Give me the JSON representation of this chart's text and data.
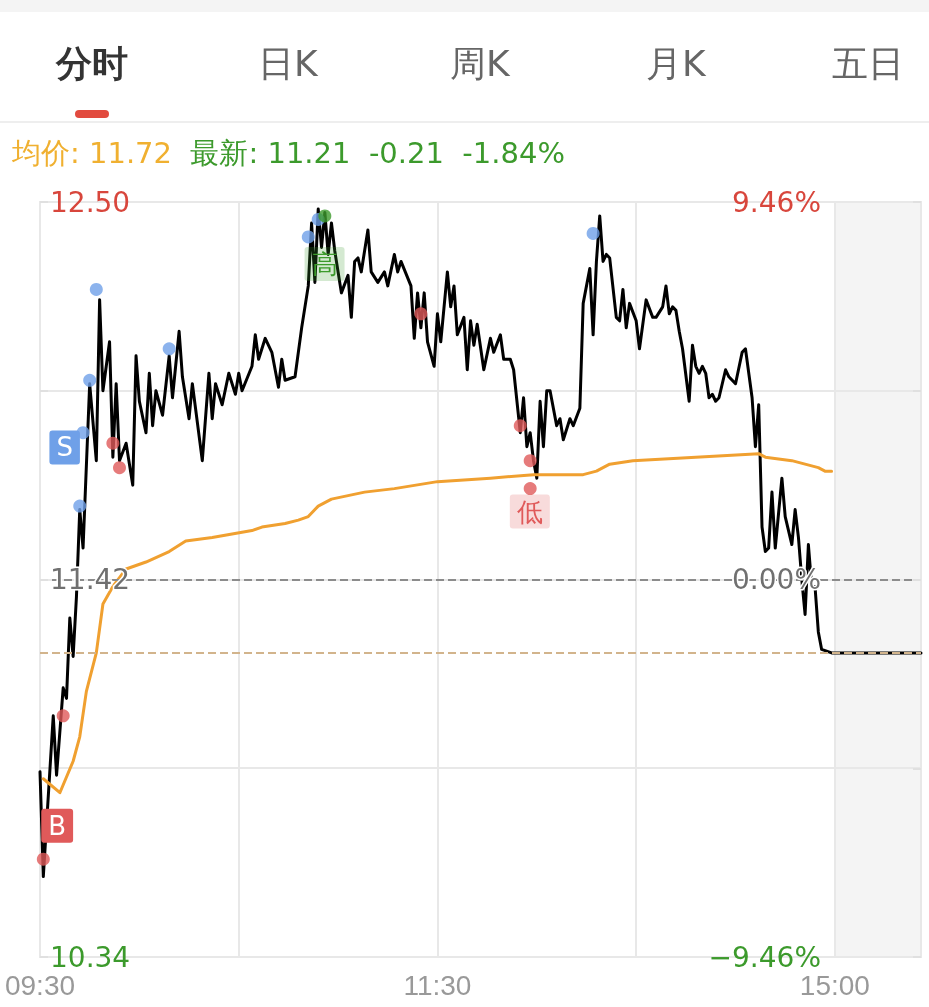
{
  "chart_data": {
    "type": "line",
    "title": "均价: 11.72",
    "subtitle": "最新: 11.21  -0.21  -1.84%",
    "annotations": [
      "分时",
      "日K",
      "周K",
      "月K",
      "五日",
      "S",
      "B",
      "高",
      "低"
    ],
    "categories": [
      "09:30",
      null,
      null,
      null,
      null,
      null,
      null,
      null,
      null,
      null,
      null,
      null,
      null,
      null,
      null,
      null,
      null,
      null,
      null,
      null,
      null,
      null,
      null,
      null,
      null,
      null,
      null,
      null,
      null,
      null,
      null,
      null,
      null,
      null,
      null,
      null,
      null,
      null,
      null,
      null,
      null,
      null,
      null,
      null,
      null,
      null,
      null,
      null,
      null,
      null,
      null,
      null,
      null,
      null,
      null,
      null,
      null,
      null,
      null,
      null,
      null,
      null,
      null,
      null,
      null,
      null,
      null,
      null,
      null,
      null,
      null,
      null,
      null,
      null,
      null,
      null,
      null,
      null,
      null,
      null,
      null,
      null,
      null,
      null,
      null,
      null,
      null,
      null,
      null,
      null,
      null,
      null,
      null,
      null,
      null,
      null,
      null,
      null,
      null,
      null,
      null,
      null,
      null,
      null,
      null,
      null,
      null,
      null,
      null,
      null,
      null,
      null,
      null,
      null,
      null,
      null,
      null,
      null,
      null,
      null,
      "11:30",
      null,
      null,
      null,
      null,
      null,
      null,
      null,
      null,
      null,
      null,
      null,
      null,
      null,
      null,
      null,
      null,
      null,
      null,
      null,
      null,
      null,
      null,
      null,
      null,
      null,
      null,
      null,
      null,
      null,
      null,
      null,
      null,
      null,
      null,
      null,
      null,
      null,
      null,
      null,
      null,
      null,
      null,
      null,
      null,
      null,
      null,
      null,
      null,
      null,
      null,
      null,
      null,
      null,
      null,
      null,
      null,
      null,
      null,
      null,
      null,
      null,
      null,
      null,
      null,
      null,
      null,
      null,
      null,
      null,
      null,
      null,
      null,
      null,
      null,
      null,
      null,
      null,
      null,
      null,
      null,
      null,
      null,
      null,
      null,
      null,
      null,
      null,
      null,
      null,
      null,
      null,
      null,
      null,
      null,
      null,
      null,
      null,
      null,
      null,
      null,
      null,
      null,
      null,
      null,
      null,
      null,
      null,
      null,
      null,
      null,
      null,
      null,
      null,
      null,
      null,
      null,
      null,
      null,
      null,
      "15:00",
      null,
      null,
      null,
      null,
      null,
      null,
      null,
      null,
      null,
      null,
      null,
      null,
      null,
      null,
      null,
      null,
      null,
      null,
      null,
      null,
      null,
      null,
      null,
      null,
      null,
      null
    ],
    "ylim": [
      10.34,
      12.5
    ],
    "yticks": [
      {
        "value": 10.34,
        "label": "10.34"
      },
      {
        "value": 10.88,
        "label": null
      },
      {
        "value": 11.42,
        "label": "11.42"
      },
      {
        "value": 11.96,
        "label": null
      },
      {
        "value": 12.5,
        "label": "12.50"
      }
    ],
    "y2lim": [
      -9.46,
      9.46
    ],
    "y2ticks": [
      {
        "value": -9.46,
        "label": "−9.46%"
      },
      {
        "value": -4.73,
        "label": null
      },
      {
        "value": 0,
        "label": "0.00%"
      },
      {
        "value": 4.73,
        "label": null
      },
      {
        "value": 9.46,
        "label": "9.46%"
      }
    ],
    "grid": true,
    "line_style": "solid",
    "ref_lines": [
      {
        "axis": "y",
        "value": 11.42,
        "color": "#8c8c8c",
        "line_style": "dashed"
      },
      {
        "axis": "y",
        "value": 11.21,
        "color": "#d2b48c",
        "line_style": "dashed"
      }
    ],
    "series": [
      {
        "color": "#000000",
        "marker": "none",
        "values": [
          10.87,
          10.57,
          null,
          null,
          11.03,
          10.86,
          null,
          11.11,
          11.08,
          11.31,
          11.2,
          11.37,
          11.62,
          11.51,
          null,
          11.98,
          null,
          11.76,
          12.22,
          11.96,
          null,
          12.1,
          11.77,
          11.98,
          11.76,
          null,
          11.81,
          null,
          11.69,
          12.06,
          11.93,
          null,
          11.84,
          12.01,
          11.86,
          11.96,
          null,
          11.89,
          null,
          12.06,
          11.94,
          null,
          12.13,
          12.0,
          null,
          11.88,
          11.98,
          null,
          null,
          11.76,
          null,
          12.01,
          11.88,
          11.98,
          null,
          11.92,
          null,
          12.01,
          null,
          11.95,
          12.01,
          11.96,
          null,
          null,
          12.03,
          12.12,
          12.05,
          null,
          12.11,
          null,
          12.07,
          null,
          11.97,
          12.05,
          11.99,
          null,
          null,
          12.0,
          null,
          12.14,
          null,
          12.26,
          12.44,
          12.27,
          12.48,
          12.37,
          12.47,
          12.35,
          12.44,
          12.36,
          null,
          12.24,
          null,
          12.29,
          12.17,
          12.33,
          12.34,
          12.3,
          null,
          12.42,
          12.3,
          null,
          12.27,
          null,
          12.3,
          12.26,
          null,
          12.35,
          12.3,
          12.33,
          null,
          null,
          12.26,
          12.11,
          12.24,
          12.14,
          12.24,
          12.1,
          null,
          12.03,
          12.18,
          12.1,
          null,
          12.3,
          12.2,
          12.26,
          12.12,
          null,
          12.17,
          12.02,
          12.16,
          12.09,
          12.15,
          null,
          12.02,
          null,
          12.11,
          12.07,
          null,
          12.12,
          12.05,
          null,
          12.05,
          12.02,
          null,
          11.84,
          11.94,
          11.8,
          11.84,
          11.76,
          11.71,
          11.93,
          11.8,
          11.96,
          11.96,
          null,
          11.86,
          11.88,
          11.82,
          null,
          11.88,
          11.86,
          null,
          11.91,
          12.21,
          null,
          12.31,
          12.12,
          12.33,
          12.46,
          12.33,
          12.35,
          12.34,
          null,
          12.17,
          12.16,
          12.25,
          12.14,
          12.21,
          null,
          12.16,
          12.08,
          null,
          12.22,
          null,
          12.17,
          12.17,
          null,
          12.2,
          12.26,
          12.18,
          12.2,
          12.19,
          12.13,
          12.08,
          null,
          11.93,
          12.09,
          12.03,
          12.01,
          12.03,
          12.01,
          11.94,
          11.95,
          11.93,
          11.94,
          null,
          12.02,
          12.0,
          null,
          11.98,
          null,
          12.07,
          12.08,
          12.01,
          11.94,
          11.8,
          11.92,
          11.57,
          11.5,
          11.51,
          11.67,
          11.51,
          null,
          11.71,
          11.6,
          null,
          11.52,
          11.62,
          11.54,
          11.42,
          11.32,
          11.52,
          11.4,
          11.4,
          11.27,
          11.22,
          null,
          null,
          11.21,
          11.21,
          11.21,
          11.21,
          11.21,
          11.21,
          11.21,
          11.21,
          11.21,
          11.21,
          11.21,
          11.21,
          11.21,
          11.21,
          11.21,
          11.21,
          11.21,
          11.21,
          11.21,
          11.21,
          11.21,
          11.21,
          11.21,
          11.21,
          11.21,
          11.21,
          11.21,
          11.21
        ]
      },
      {
        "color": "#f0a030",
        "marker": "none",
        "values": [
          null,
          10.85,
          null,
          null,
          null,
          null,
          10.81,
          null,
          null,
          null,
          10.9,
          null,
          10.97,
          null,
          11.1,
          null,
          null,
          11.21,
          null,
          11.35,
          null,
          null,
          11.4,
          null,
          null,
          null,
          11.45,
          null,
          null,
          null,
          null,
          null,
          11.47,
          null,
          null,
          null,
          null,
          null,
          null,
          11.5,
          null,
          null,
          null,
          null,
          11.53,
          null,
          null,
          null,
          null,
          null,
          null,
          null,
          11.54,
          null,
          null,
          null,
          null,
          null,
          null,
          null,
          null,
          null,
          null,
          null,
          11.56,
          null,
          null,
          11.57,
          null,
          null,
          null,
          null,
          null,
          null,
          11.58,
          null,
          null,
          null,
          11.59,
          null,
          null,
          11.6,
          null,
          null,
          11.63,
          null,
          null,
          null,
          11.65,
          null,
          null,
          null,
          null,
          null,
          null,
          null,
          null,
          null,
          11.67,
          null,
          null,
          null,
          null,
          null,
          null,
          null,
          null,
          11.68,
          null,
          null,
          null,
          null,
          null,
          null,
          null,
          null,
          null,
          null,
          null,
          null,
          11.7,
          null,
          null,
          null,
          null,
          null,
          null,
          null,
          null,
          null,
          null,
          null,
          null,
          null,
          null,
          null,
          11.71,
          null,
          null,
          null,
          null,
          null,
          null,
          null,
          null,
          null,
          null,
          null,
          null,
          11.72,
          null,
          null,
          null,
          null,
          null,
          null,
          null,
          null,
          null,
          null,
          null,
          null,
          null,
          null,
          11.72,
          null,
          null,
          null,
          11.73,
          null,
          null,
          null,
          11.75,
          null,
          null,
          null,
          null,
          null,
          null,
          11.76,
          null,
          null,
          null,
          null,
          null,
          null,
          null,
          null,
          null,
          null,
          null,
          null,
          null,
          null,
          null,
          null,
          null,
          null,
          11.77,
          null,
          null,
          null,
          null,
          null,
          null,
          null,
          null,
          null,
          null,
          null,
          null,
          null,
          null,
          null,
          null,
          null,
          null,
          11.78,
          null,
          11.77,
          null,
          null,
          null,
          null,
          null,
          null,
          null,
          11.76,
          null,
          null,
          null,
          null,
          null,
          null,
          null,
          11.74,
          null,
          11.73,
          null,
          11.73,
          null,
          null,
          null,
          null,
          null,
          null,
          null,
          null,
          null,
          null,
          null,
          null,
          null,
          null,
          null,
          null,
          null,
          null,
          null,
          null,
          null,
          null,
          null,
          null,
          null,
          null,
          null
        ]
      },
      {
        "type": "scatter",
        "color": "#6fa0e8",
        "marker": "circle",
        "values": [
          null,
          null,
          null,
          null,
          null,
          null,
          null,
          null,
          null,
          null,
          null,
          null,
          11.63,
          11.84,
          null,
          11.99,
          null,
          12.25,
          null,
          null,
          null,
          null,
          null,
          null,
          null,
          null,
          null,
          null,
          null,
          null,
          null,
          null,
          null,
          null,
          null,
          null,
          null,
          null,
          null,
          12.08,
          null,
          null,
          null,
          null,
          null,
          null,
          null,
          null,
          null,
          null,
          null,
          null,
          null,
          null,
          null,
          null,
          null,
          null,
          null,
          null,
          null,
          null,
          null,
          null,
          null,
          null,
          null,
          null,
          null,
          null,
          null,
          null,
          null,
          null,
          null,
          null,
          null,
          null,
          null,
          null,
          null,
          12.4,
          null,
          null,
          12.45,
          null,
          null,
          null,
          null,
          null,
          null,
          null,
          null,
          null,
          null,
          null,
          null,
          null,
          null,
          null,
          null,
          null,
          null,
          null,
          null,
          null,
          null,
          null,
          null,
          null,
          null,
          null,
          null,
          null,
          null,
          null,
          null,
          null,
          null,
          null,
          null,
          null,
          null,
          null,
          null,
          null,
          null,
          null,
          null,
          null,
          null,
          null,
          null,
          null,
          null,
          null,
          null,
          null,
          null,
          null,
          null,
          null,
          null,
          null,
          null,
          null,
          null,
          null,
          null,
          null,
          null,
          null,
          null,
          null,
          null,
          null,
          null,
          null,
          null,
          null,
          null,
          null,
          null,
          null,
          null,
          null,
          null,
          12.41,
          null,
          null,
          null,
          null,
          null,
          null,
          null,
          null,
          null,
          null,
          null,
          null,
          null,
          null,
          null,
          null,
          null,
          null,
          null,
          null,
          null,
          null,
          null,
          null,
          null,
          null,
          null,
          null,
          null,
          null,
          null,
          null,
          null,
          null,
          null,
          null,
          null,
          null,
          null,
          null,
          null,
          null,
          null,
          null,
          null,
          null,
          null,
          null,
          null,
          null,
          null,
          null,
          null,
          null,
          null,
          null,
          null,
          null,
          null,
          null,
          null,
          null,
          null,
          null,
          null,
          null,
          null,
          null,
          null,
          null,
          null,
          null,
          null,
          null,
          null,
          null,
          null,
          null,
          null,
          null,
          null,
          null,
          null,
          null,
          null,
          null,
          null,
          null,
          null,
          null,
          null,
          null,
          null,
          null,
          null,
          null,
          null,
          null,
          null
        ]
      },
      {
        "type": "scatter",
        "color": "#e05a5a",
        "marker": "circle",
        "values": [
          null,
          10.62,
          null,
          null,
          null,
          null,
          null,
          11.03,
          null,
          null,
          null,
          null,
          null,
          null,
          null,
          null,
          null,
          null,
          null,
          null,
          null,
          null,
          11.81,
          null,
          11.74,
          null,
          null,
          null,
          null,
          null,
          null,
          null,
          null,
          null,
          null,
          null,
          null,
          null,
          null,
          null,
          null,
          null,
          null,
          null,
          null,
          null,
          null,
          null,
          null,
          null,
          null,
          null,
          null,
          null,
          null,
          null,
          null,
          null,
          null,
          null,
          null,
          null,
          null,
          null,
          null,
          null,
          null,
          null,
          null,
          null,
          null,
          null,
          null,
          null,
          null,
          null,
          null,
          null,
          null,
          null,
          null,
          null,
          null,
          null,
          null,
          null,
          null,
          null,
          null,
          null,
          null,
          null,
          null,
          null,
          null,
          null,
          null,
          null,
          null,
          null,
          null,
          null,
          null,
          null,
          null,
          null,
          null,
          null,
          null,
          null,
          null,
          null,
          null,
          null,
          null,
          12.18,
          null,
          null,
          null,
          null,
          null,
          null,
          null,
          null,
          null,
          null,
          null,
          null,
          null,
          null,
          null,
          null,
          null,
          null,
          null,
          null,
          null,
          null,
          null,
          null,
          null,
          null,
          null,
          null,
          null,
          11.86,
          null,
          null,
          11.76,
          null,
          null,
          null,
          null,
          null,
          null,
          null,
          null,
          null,
          null,
          null,
          null,
          null,
          null,
          null,
          null,
          null,
          null,
          null,
          null,
          null,
          null,
          null,
          null,
          null,
          null,
          null,
          null,
          null,
          null,
          null,
          null,
          null,
          null,
          null,
          null,
          null,
          null,
          null,
          null,
          null,
          null,
          null,
          null,
          null,
          null,
          null,
          null,
          null,
          null,
          null,
          null,
          null,
          null,
          null,
          null,
          null,
          null,
          null,
          null,
          null,
          null,
          null,
          null,
          null,
          null,
          null,
          null,
          null,
          null,
          null,
          null,
          null,
          null,
          null,
          null,
          null,
          null,
          null,
          null,
          null,
          null,
          null,
          null,
          null,
          null,
          null,
          null,
          null,
          null,
          null,
          null,
          null,
          null,
          null,
          null,
          null,
          null,
          null,
          null,
          null,
          null,
          null,
          null,
          null,
          null,
          null,
          null,
          null,
          null,
          null,
          null,
          null,
          null,
          null,
          null,
          null,
          null
        ]
      },
      {
        "type": "scatter",
        "color": "#e05a5a",
        "marker": "circle",
        "values": [
          null,
          null,
          null,
          null,
          null,
          null,
          null,
          null,
          null,
          null,
          null,
          null,
          null,
          null,
          null,
          null,
          null,
          null,
          null,
          null,
          null,
          null,
          null,
          null,
          null,
          null,
          null,
          null,
          null,
          null,
          null,
          null,
          null,
          null,
          null,
          null,
          null,
          null,
          null,
          null,
          null,
          null,
          null,
          null,
          null,
          null,
          null,
          null,
          null,
          null,
          null,
          null,
          null,
          null,
          null,
          null,
          null,
          null,
          null,
          null,
          null,
          null,
          null,
          null,
          null,
          null,
          null,
          null,
          null,
          null,
          null,
          null,
          null,
          null,
          null,
          null,
          null,
          null,
          null,
          null,
          null,
          null,
          null,
          null,
          null,
          null,
          null,
          null,
          null,
          null,
          null,
          null,
          null,
          null,
          null,
          null,
          null,
          null,
          null,
          null,
          null,
          null,
          null,
          null,
          null,
          null,
          null,
          null,
          null,
          null,
          null,
          null,
          null,
          null,
          null,
          null,
          null,
          null,
          null,
          null,
          null,
          null,
          null,
          null,
          null,
          null,
          null,
          null,
          null,
          null,
          null,
          null,
          null,
          null,
          null,
          null,
          null,
          null,
          null,
          null,
          null,
          null,
          null,
          null,
          null,
          null,
          null,
          null,
          11.68,
          null,
          null,
          null,
          null,
          null,
          null,
          null,
          null,
          null,
          null,
          null,
          null,
          null,
          null,
          null,
          null,
          null,
          null,
          null,
          null,
          null,
          null,
          null,
          null,
          null,
          null,
          null,
          null,
          null,
          null,
          null,
          null,
          null,
          null,
          null,
          null,
          null,
          null,
          null,
          null,
          null,
          null,
          null,
          null,
          null,
          null,
          null,
          null,
          null,
          null,
          null,
          null,
          null,
          null,
          null,
          null,
          null,
          null,
          null,
          null,
          null,
          null,
          null,
          null,
          null,
          null,
          null,
          null,
          null,
          null,
          null,
          null,
          null,
          null,
          null,
          null,
          null,
          null,
          null,
          null,
          null,
          null,
          null,
          null,
          null,
          null,
          null,
          null,
          null,
          null,
          null,
          null,
          null,
          null,
          null,
          null,
          null,
          null,
          null,
          null,
          null,
          null,
          null,
          null,
          null,
          null,
          null,
          null,
          null,
          null,
          null,
          null,
          null,
          null,
          null,
          null,
          null,
          null
        ]
      },
      {
        "type": "scatter",
        "color": "#3c9a2c",
        "marker": "circle",
        "values": [
          null,
          null,
          null,
          null,
          null,
          null,
          null,
          null,
          null,
          null,
          null,
          null,
          null,
          null,
          null,
          null,
          null,
          null,
          null,
          null,
          null,
          null,
          null,
          null,
          null,
          null,
          null,
          null,
          null,
          null,
          null,
          null,
          null,
          null,
          null,
          null,
          null,
          null,
          null,
          null,
          null,
          null,
          null,
          null,
          null,
          null,
          null,
          null,
          null,
          null,
          null,
          null,
          null,
          null,
          null,
          null,
          null,
          null,
          null,
          null,
          null,
          null,
          null,
          null,
          null,
          null,
          null,
          null,
          null,
          null,
          null,
          null,
          null,
          null,
          null,
          null,
          null,
          null,
          null,
          null,
          null,
          null,
          null,
          null,
          null,
          null,
          12.46,
          null,
          null,
          null,
          null,
          null,
          null,
          null,
          null,
          null,
          null,
          null,
          null,
          null,
          null,
          null,
          null,
          null,
          null,
          null,
          null,
          null,
          null,
          null,
          null,
          null,
          null,
          null,
          null,
          null,
          null,
          null,
          null,
          null,
          null,
          null,
          null,
          null,
          null,
          null,
          null,
          null,
          null,
          null,
          null,
          null,
          null,
          null,
          null,
          null,
          null,
          null,
          null,
          null,
          null,
          null,
          null,
          null,
          null,
          null,
          null,
          null,
          null,
          null,
          null,
          null,
          null,
          null,
          null,
          null,
          null,
          null,
          null,
          null,
          null,
          null,
          null,
          null,
          null,
          null,
          null,
          null,
          null,
          null,
          null,
          null,
          null,
          null,
          null,
          null,
          null,
          null,
          null,
          null,
          null,
          null,
          null,
          null,
          null,
          null,
          null,
          null,
          null,
          null,
          null,
          null,
          null,
          null,
          null,
          null,
          null,
          null,
          null,
          null,
          null,
          null,
          null,
          null,
          null,
          null,
          null,
          null,
          null,
          null,
          null,
          null,
          null,
          null,
          null,
          null,
          null,
          null,
          null,
          null,
          null,
          null,
          null,
          null,
          null,
          null,
          null,
          null,
          null,
          null,
          null,
          null,
          null,
          null,
          null,
          null,
          null,
          null,
          null,
          null,
          null,
          null,
          null,
          null,
          null,
          null,
          null,
          null,
          null,
          null,
          null,
          null,
          null,
          null,
          null,
          null,
          null,
          null,
          null,
          null,
          null,
          null,
          null,
          null,
          null,
          null,
          null
        ]
      }
    ]
  }
}
